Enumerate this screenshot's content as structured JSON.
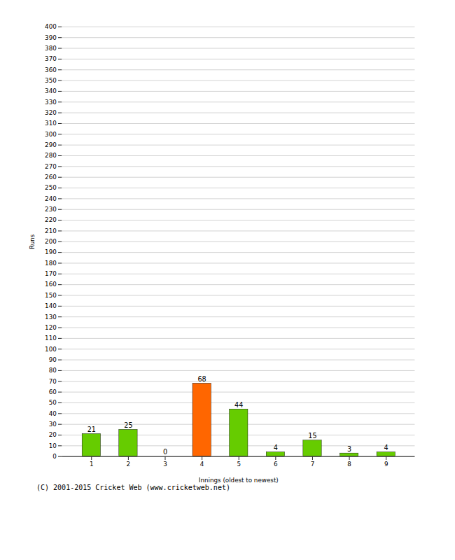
{
  "chart_data": {
    "type": "bar",
    "xlabel": "Innings (oldest to newest)",
    "ylabel": "Runs",
    "caption": "(C) 2001-2015 Cricket Web (www.cricketweb.net)",
    "categories": [
      "1",
      "2",
      "3",
      "4",
      "5",
      "6",
      "7",
      "8",
      "9"
    ],
    "values": [
      21,
      25,
      0,
      68,
      44,
      4,
      15,
      3,
      4
    ],
    "colors": [
      "#66cc00",
      "#66cc00",
      "#66cc00",
      "#ff6600",
      "#66cc00",
      "#66cc00",
      "#66cc00",
      "#66cc00",
      "#66cc00"
    ],
    "ylim": [
      0,
      400
    ],
    "yticks": [
      0,
      10,
      20,
      30,
      40,
      50,
      60,
      70,
      80,
      90,
      100,
      110,
      120,
      130,
      140,
      150,
      160,
      170,
      180,
      190,
      200,
      210,
      220,
      230,
      240,
      250,
      260,
      270,
      280,
      290,
      300,
      310,
      320,
      330,
      340,
      350,
      360,
      370,
      380,
      390,
      400
    ],
    "grid": true,
    "data_labels": true
  }
}
